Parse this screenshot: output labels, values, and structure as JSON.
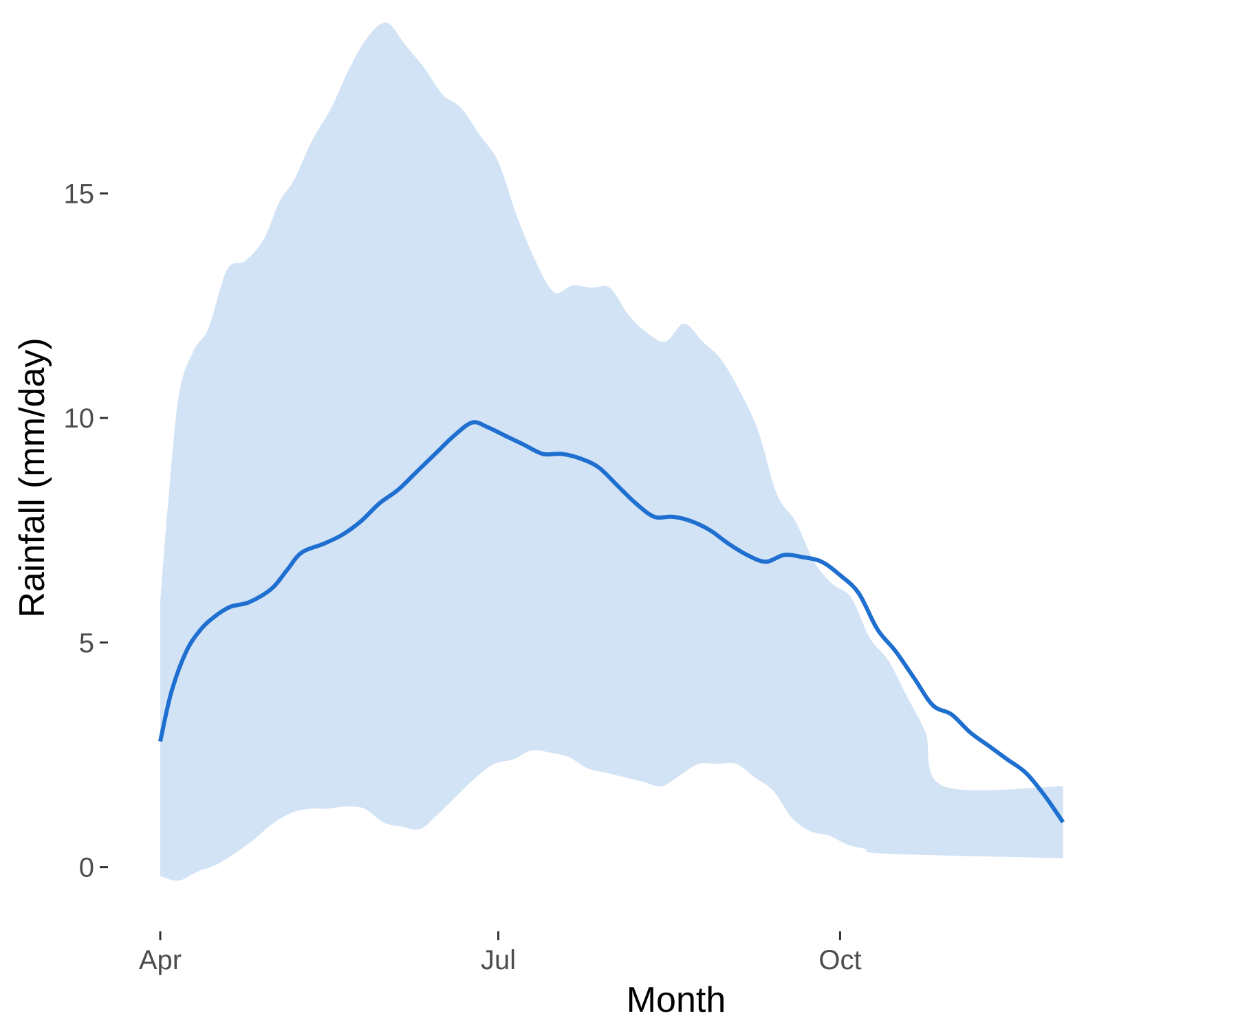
{
  "chart_data": {
    "type": "area",
    "title": "",
    "xlabel": "Month",
    "ylabel": "Rainfall (mm/day)",
    "x_ticks": [
      "Apr",
      "Jul",
      "Oct"
    ],
    "y_ticks": [
      0,
      5,
      10,
      15
    ],
    "xlim": [
      "2000-04-01",
      "2000-12-31"
    ],
    "ylim": [
      -1.2,
      19
    ],
    "grid": false,
    "legend": "none",
    "colors": {
      "line": "#1f6fd0",
      "band": "#d2e3f5"
    },
    "series": [
      {
        "values": [
          [
            "2000-04-01",
            2.8
          ],
          [
            "2000-04-04",
            3.9
          ],
          [
            "2000-04-08",
            4.8
          ],
          [
            "2000-04-12",
            5.3
          ],
          [
            "2000-04-16",
            5.6
          ],
          [
            "2000-04-20",
            5.8
          ],
          [
            "2000-04-25",
            5.9
          ],
          [
            "2000-05-01",
            6.2
          ],
          [
            "2000-05-05",
            6.6
          ],
          [
            "2000-05-09",
            7.0
          ],
          [
            "2000-05-15",
            7.2
          ],
          [
            "2000-05-20",
            7.4
          ],
          [
            "2000-05-25",
            7.7
          ],
          [
            "2000-05-30",
            8.1
          ],
          [
            "2000-06-04",
            8.4
          ],
          [
            "2000-06-09",
            8.8
          ],
          [
            "2000-06-14",
            9.2
          ],
          [
            "2000-06-19",
            9.6
          ],
          [
            "2000-06-24",
            9.9
          ],
          [
            "2000-06-28",
            9.8
          ],
          [
            "2000-07-03",
            9.6
          ],
          [
            "2000-07-08",
            9.4
          ],
          [
            "2000-07-13",
            9.2
          ],
          [
            "2000-07-18",
            9.2
          ],
          [
            "2000-07-23",
            9.1
          ],
          [
            "2000-07-28",
            8.9
          ],
          [
            "2000-08-02",
            8.5
          ],
          [
            "2000-08-07",
            8.1
          ],
          [
            "2000-08-12",
            7.8
          ],
          [
            "2000-08-17",
            7.8
          ],
          [
            "2000-08-22",
            7.7
          ],
          [
            "2000-08-27",
            7.5
          ],
          [
            "2000-09-01",
            7.2
          ],
          [
            "2000-09-06",
            6.95
          ],
          [
            "2000-09-11",
            6.8
          ],
          [
            "2000-09-16",
            6.95
          ],
          [
            "2000-09-21",
            6.9
          ],
          [
            "2000-09-26",
            6.8
          ],
          [
            "2000-10-01",
            6.5
          ],
          [
            "2000-10-06",
            6.1
          ],
          [
            "2000-10-11",
            5.3
          ],
          [
            "2000-10-16",
            4.8
          ],
          [
            "2000-10-21",
            4.2
          ],
          [
            "2000-10-26",
            3.6
          ],
          [
            "2000-10-31",
            3.4
          ],
          [
            "2000-11-05",
            3.0
          ],
          [
            "2000-11-10",
            2.7
          ],
          [
            "2000-11-15",
            2.4
          ],
          [
            "2000-11-20",
            2.1
          ],
          [
            "2000-11-25",
            1.6
          ],
          [
            "2000-11-30",
            1.0
          ]
        ]
      }
    ],
    "band": {
      "upper": [
        [
          "2000-04-01",
          5.9
        ],
        [
          "2000-04-03",
          8.0
        ],
        [
          "2000-04-06",
          10.5
        ],
        [
          "2000-04-10",
          11.5
        ],
        [
          "2000-04-14",
          12.0
        ],
        [
          "2000-04-19",
          13.3
        ],
        [
          "2000-04-24",
          13.5
        ],
        [
          "2000-04-29",
          14.0
        ],
        [
          "2000-05-03",
          14.8
        ],
        [
          "2000-05-07",
          15.3
        ],
        [
          "2000-05-12",
          16.2
        ],
        [
          "2000-05-17",
          16.9
        ],
        [
          "2000-05-22",
          17.8
        ],
        [
          "2000-05-27",
          18.5
        ],
        [
          "2000-06-01",
          18.8
        ],
        [
          "2000-06-06",
          18.3
        ],
        [
          "2000-06-11",
          17.8
        ],
        [
          "2000-06-16",
          17.2
        ],
        [
          "2000-06-21",
          16.9
        ],
        [
          "2000-06-26",
          16.3
        ],
        [
          "2000-07-01",
          15.7
        ],
        [
          "2000-07-06",
          14.5
        ],
        [
          "2000-07-11",
          13.5
        ],
        [
          "2000-07-16",
          12.8
        ],
        [
          "2000-07-21",
          12.95
        ],
        [
          "2000-07-26",
          12.9
        ],
        [
          "2000-07-31",
          12.9
        ],
        [
          "2000-08-05",
          12.3
        ],
        [
          "2000-08-10",
          11.9
        ],
        [
          "2000-08-15",
          11.7
        ],
        [
          "2000-08-20",
          12.1
        ],
        [
          "2000-08-25",
          11.7
        ],
        [
          "2000-08-30",
          11.3
        ],
        [
          "2000-09-04",
          10.6
        ],
        [
          "2000-09-09",
          9.7
        ],
        [
          "2000-09-14",
          8.3
        ],
        [
          "2000-09-19",
          7.7
        ],
        [
          "2000-09-24",
          6.8
        ],
        [
          "2000-09-29",
          6.3
        ],
        [
          "2000-10-04",
          6.0
        ],
        [
          "2000-10-09",
          5.1
        ],
        [
          "2000-10-14",
          4.6
        ],
        [
          "2000-10-19",
          3.8
        ],
        [
          "2000-10-24",
          3.0
        ],
        [
          "2000-10-29",
          1.8
        ],
        [
          "2000-11-30",
          1.8
        ]
      ],
      "lower": [
        [
          "2000-04-01",
          -0.2
        ],
        [
          "2000-04-06",
          -0.3
        ],
        [
          "2000-04-11",
          -0.1
        ],
        [
          "2000-04-16",
          0.05
        ],
        [
          "2000-04-21",
          0.3
        ],
        [
          "2000-04-26",
          0.6
        ],
        [
          "2000-05-01",
          0.95
        ],
        [
          "2000-05-06",
          1.2
        ],
        [
          "2000-05-11",
          1.3
        ],
        [
          "2000-05-16",
          1.3
        ],
        [
          "2000-05-21",
          1.35
        ],
        [
          "2000-05-26",
          1.3
        ],
        [
          "2000-05-31",
          1.0
        ],
        [
          "2000-06-05",
          0.9
        ],
        [
          "2000-06-10",
          0.85
        ],
        [
          "2000-06-15",
          1.2
        ],
        [
          "2000-06-20",
          1.6
        ],
        [
          "2000-06-25",
          2.0
        ],
        [
          "2000-06-30",
          2.3
        ],
        [
          "2000-07-05",
          2.4
        ],
        [
          "2000-07-10",
          2.6
        ],
        [
          "2000-07-15",
          2.55
        ],
        [
          "2000-07-20",
          2.45
        ],
        [
          "2000-07-25",
          2.2
        ],
        [
          "2000-07-30",
          2.1
        ],
        [
          "2000-08-04",
          2.0
        ],
        [
          "2000-08-09",
          1.9
        ],
        [
          "2000-08-14",
          1.8
        ],
        [
          "2000-08-19",
          2.05
        ],
        [
          "2000-08-24",
          2.3
        ],
        [
          "2000-08-29",
          2.3
        ],
        [
          "2000-09-03",
          2.3
        ],
        [
          "2000-09-08",
          2.0
        ],
        [
          "2000-09-13",
          1.7
        ],
        [
          "2000-09-18",
          1.1
        ],
        [
          "2000-09-23",
          0.8
        ],
        [
          "2000-09-28",
          0.7
        ],
        [
          "2000-10-03",
          0.5
        ],
        [
          "2000-10-08",
          0.4
        ],
        [
          "2000-10-13",
          0.3
        ],
        [
          "2000-11-30",
          0.2
        ]
      ]
    }
  }
}
